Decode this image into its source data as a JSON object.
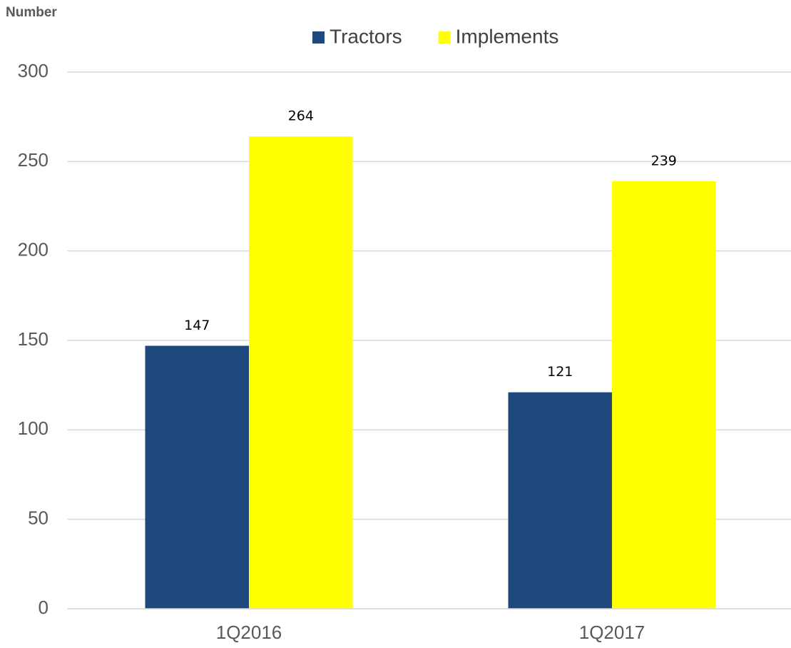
{
  "chart_data": {
    "type": "bar",
    "y_label": "Number",
    "categories": [
      "1Q2016",
      "1Q2017"
    ],
    "series": [
      {
        "name": "Tractors",
        "color": "#1f497d",
        "values": [
          147,
          121
        ]
      },
      {
        "name": "Implements",
        "color": "#ffff00",
        "values": [
          264,
          239
        ]
      }
    ],
    "ylim": [
      0,
      300
    ],
    "yticks": [
      0,
      50,
      100,
      150,
      200,
      250,
      300
    ],
    "grid": true,
    "legend": "top"
  }
}
